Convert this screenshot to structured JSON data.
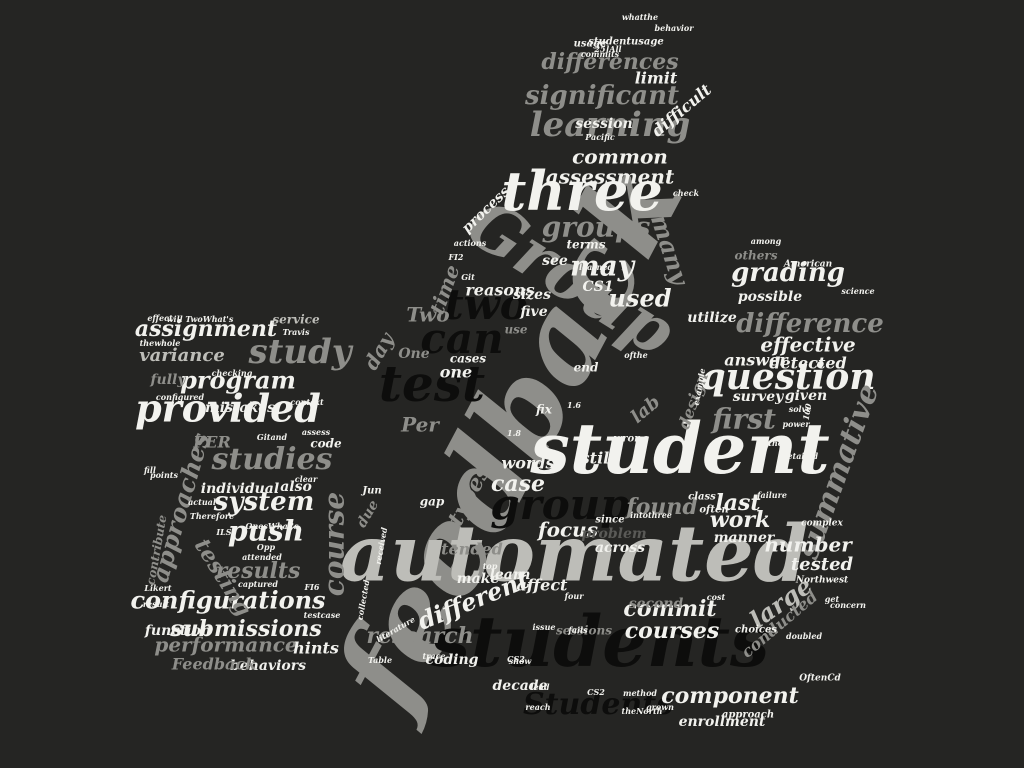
{
  "background": "#252523",
  "palette": {
    "white": "#f2f2ee",
    "light": "#bdbdb8",
    "mid": "#8e8e8a",
    "dark": "#5a5a57",
    "black": "#0d0d0c"
  },
  "shape": "thumbs-up",
  "words": [
    {
      "text": "feedback",
      "tone": "mid"
    },
    {
      "text": "automated",
      "tone": "light"
    },
    {
      "text": "student",
      "tone": "white"
    },
    {
      "text": "students",
      "tone": "black"
    },
    {
      "text": "Group",
      "tone": "mid"
    },
    {
      "text": "three",
      "tone": "white"
    },
    {
      "text": "test",
      "tone": "black"
    },
    {
      "text": "provided",
      "tone": "white"
    },
    {
      "text": "group",
      "tone": "black"
    },
    {
      "text": "question",
      "tone": "white"
    },
    {
      "text": "two",
      "tone": "black"
    },
    {
      "text": "can",
      "tone": "black"
    },
    {
      "text": "learning",
      "tone": "mid"
    },
    {
      "text": "summative",
      "tone": "mid"
    },
    {
      "text": "studies",
      "tone": "mid"
    },
    {
      "text": "study",
      "tone": "mid"
    },
    {
      "text": "system",
      "tone": "white"
    },
    {
      "text": "course",
      "tone": "mid"
    },
    {
      "text": "configurations",
      "tone": "white"
    },
    {
      "text": "Students",
      "tone": "black"
    },
    {
      "text": "significant",
      "tone": "mid"
    },
    {
      "text": "groups",
      "tone": "mid"
    },
    {
      "text": "push",
      "tone": "white"
    },
    {
      "text": "different",
      "tone": "white"
    },
    {
      "text": "grading",
      "tone": "white"
    },
    {
      "text": "difference",
      "tone": "mid"
    },
    {
      "text": "first",
      "tone": "mid"
    },
    {
      "text": "used",
      "tone": "white"
    },
    {
      "text": "may",
      "tone": "white"
    },
    {
      "text": "many",
      "tone": "mid"
    },
    {
      "text": "testing",
      "tone": "mid"
    },
    {
      "text": "approaches",
      "tone": "mid"
    },
    {
      "text": "program",
      "tone": "white"
    },
    {
      "text": "assignment",
      "tone": "white"
    },
    {
      "text": "variance",
      "tone": "light"
    },
    {
      "text": "differences",
      "tone": "mid"
    },
    {
      "text": "common",
      "tone": "white"
    },
    {
      "text": "assessment",
      "tone": "white"
    },
    {
      "text": "submissions",
      "tone": "white"
    },
    {
      "text": "performance",
      "tone": "mid"
    },
    {
      "text": "results",
      "tone": "mid"
    },
    {
      "text": "research",
      "tone": "mid"
    },
    {
      "text": "courses",
      "tone": "white"
    },
    {
      "text": "component",
      "tone": "white"
    },
    {
      "text": "commit",
      "tone": "white"
    },
    {
      "text": "large",
      "tone": "light"
    },
    {
      "text": "found",
      "tone": "mid"
    },
    {
      "text": "work",
      "tone": "white"
    },
    {
      "text": "last",
      "tone": "white"
    },
    {
      "text": "tested",
      "tone": "white"
    },
    {
      "text": "number",
      "tone": "white"
    },
    {
      "text": "effective",
      "tone": "white"
    },
    {
      "text": "detected",
      "tone": "white"
    },
    {
      "text": "answer",
      "tone": "white"
    },
    {
      "text": "focus",
      "tone": "white"
    },
    {
      "text": "case",
      "tone": "white"
    },
    {
      "text": "types",
      "tone": "mid"
    },
    {
      "text": "words",
      "tone": "white"
    },
    {
      "text": "lab",
      "tone": "mid"
    },
    {
      "text": "Per",
      "tone": "mid"
    },
    {
      "text": "time",
      "tone": "mid"
    },
    {
      "text": "day",
      "tone": "mid"
    },
    {
      "text": "Two",
      "tone": "mid"
    },
    {
      "text": "one",
      "tone": "white"
    },
    {
      "text": "five",
      "tone": "white"
    },
    {
      "text": "reasons",
      "tone": "white"
    },
    {
      "text": "sizes",
      "tone": "white"
    },
    {
      "text": "still",
      "tone": "white"
    },
    {
      "text": "design",
      "tone": "mid"
    },
    {
      "text": "survey",
      "tone": "white"
    },
    {
      "text": "given",
      "tone": "white"
    },
    {
      "text": "limit",
      "tone": "white"
    },
    {
      "text": "difficult",
      "tone": "white"
    },
    {
      "text": "session",
      "tone": "white"
    },
    {
      "text": "process",
      "tone": "white"
    },
    {
      "text": "hints",
      "tone": "white"
    },
    {
      "text": "behaviors",
      "tone": "white"
    },
    {
      "text": "Feedback",
      "tone": "mid"
    },
    {
      "text": "function",
      "tone": "white"
    },
    {
      "text": "individual",
      "tone": "white"
    },
    {
      "text": "also",
      "tone": "white"
    },
    {
      "text": "code",
      "tone": "white"
    },
    {
      "text": "service",
      "tone": "light"
    },
    {
      "text": "mistakes",
      "tone": "white"
    },
    {
      "text": "PER",
      "tone": "mid"
    },
    {
      "text": "fully",
      "tone": "mid"
    },
    {
      "text": "conducted",
      "tone": "mid"
    },
    {
      "text": "problem",
      "tone": "dark"
    },
    {
      "text": "across",
      "tone": "white"
    },
    {
      "text": "manner",
      "tone": "white"
    },
    {
      "text": "second",
      "tone": "mid"
    },
    {
      "text": "affect",
      "tone": "white"
    },
    {
      "text": "sessions",
      "tone": "mid"
    },
    {
      "text": "coding",
      "tone": "white"
    },
    {
      "text": "make",
      "tone": "white"
    },
    {
      "text": "learn",
      "tone": "white"
    },
    {
      "text": "decade",
      "tone": "white"
    },
    {
      "text": "enrollment",
      "tone": "white"
    },
    {
      "text": "tended",
      "tone": "mid"
    },
    {
      "text": "possible",
      "tone": "white"
    },
    {
      "text": "utilize",
      "tone": "white"
    },
    {
      "text": "others",
      "tone": "mid"
    },
    {
      "text": "CS1",
      "tone": "white"
    },
    {
      "text": "terms",
      "tone": "white"
    },
    {
      "text": "see",
      "tone": "white"
    },
    {
      "text": "end",
      "tone": "white"
    },
    {
      "text": "cases",
      "tone": "white"
    },
    {
      "text": "fix",
      "tone": "white"
    },
    {
      "text": "One",
      "tone": "mid"
    },
    {
      "text": "use",
      "tone": "mid"
    },
    {
      "text": "due",
      "tone": "mid"
    },
    {
      "text": "wrong",
      "tone": "white"
    },
    {
      "text": "since",
      "tone": "white"
    },
    {
      "text": "class",
      "tone": "white"
    },
    {
      "text": "often",
      "tone": "white"
    },
    {
      "text": "gap",
      "tone": "white"
    },
    {
      "text": "Jun",
      "tone": "white"
    },
    {
      "text": "top",
      "tone": "white"
    },
    {
      "text": "four",
      "tone": "white"
    },
    {
      "text": "cost",
      "tone": "white"
    },
    {
      "text": "failure",
      "tone": "white"
    },
    {
      "text": "choices",
      "tone": "white"
    },
    {
      "text": "approach",
      "tone": "white"
    },
    {
      "text": "method",
      "tone": "white"
    },
    {
      "text": "reach",
      "tone": "white"
    },
    {
      "text": "lead",
      "tone": "white"
    },
    {
      "text": "show",
      "tone": "white"
    },
    {
      "text": "trace",
      "tone": "white"
    },
    {
      "text": "Table",
      "tone": "white"
    },
    {
      "text": "Northwest",
      "tone": "white"
    },
    {
      "text": "American",
      "tone": "white"
    },
    {
      "text": "Pacific",
      "tone": "white"
    },
    {
      "text": "commits",
      "tone": "white"
    },
    {
      "text": "usage",
      "tone": "white"
    },
    {
      "text": "behavior",
      "tone": "white"
    },
    {
      "text": "learned",
      "tone": "white"
    },
    {
      "text": "actions",
      "tone": "white"
    },
    {
      "text": "among",
      "tone": "white"
    },
    {
      "text": "science",
      "tone": "white"
    },
    {
      "text": "complex",
      "tone": "white"
    },
    {
      "text": "detailed",
      "tone": "white"
    },
    {
      "text": "concern",
      "tone": "white"
    },
    {
      "text": "check",
      "tone": "white"
    },
    {
      "text": "Travis",
      "tone": "white"
    },
    {
      "text": "checking",
      "tone": "white"
    },
    {
      "text": "context",
      "tone": "white"
    },
    {
      "text": "configured",
      "tone": "white"
    },
    {
      "text": "assess",
      "tone": "white"
    },
    {
      "text": "clear",
      "tone": "white"
    },
    {
      "text": "points",
      "tone": "white"
    },
    {
      "text": "actual",
      "tone": "white"
    },
    {
      "text": "Therefore",
      "tone": "white"
    },
    {
      "text": "contribute",
      "tone": "mid"
    },
    {
      "text": "attended",
      "tone": "white"
    },
    {
      "text": "captured",
      "tone": "white"
    },
    {
      "text": "Likert",
      "tone": "white"
    },
    {
      "text": "result",
      "tone": "white"
    },
    {
      "text": "testcase",
      "tone": "white"
    },
    {
      "text": "received",
      "tone": "white"
    },
    {
      "text": "collected",
      "tone": "white"
    },
    {
      "text": "literature",
      "tone": "white"
    },
    {
      "text": "effect",
      "tone": "white"
    },
    {
      "text": "power",
      "tone": "white"
    },
    {
      "text": "fill",
      "tone": "white"
    },
    {
      "text": "get",
      "tone": "white"
    },
    {
      "text": "Git",
      "tone": "white"
    },
    {
      "text": "CS2",
      "tone": "white"
    },
    {
      "text": "OnesWhat's",
      "tone": "white"
    },
    {
      "text": "FI6",
      "tone": "white"
    },
    {
      "text": "FI2",
      "tone": "white"
    },
    {
      "text": "studentusage",
      "tone": "white"
    },
    {
      "text": "whatthe",
      "tone": "white"
    },
    {
      "text": "thewhole",
      "tone": "white"
    },
    {
      "text": "intothree",
      "tone": "white"
    },
    {
      "text": "theNorth",
      "tone": "white"
    },
    {
      "text": "will TwoWhat's",
      "tone": "white"
    },
    {
      "text": "25]All",
      "tone": "white"
    },
    {
      "text": "OftenCd",
      "tone": "white"
    },
    {
      "text": "ofthe",
      "tone": "white"
    },
    {
      "text": "onthe",
      "tone": "white"
    },
    {
      "text": "solve",
      "tone": "white"
    },
    {
      "text": "doubled",
      "tone": "white"
    },
    {
      "text": "grown",
      "tone": "white"
    },
    {
      "text": "issue",
      "tone": "white"
    },
    {
      "text": "fails",
      "tone": "white"
    },
    {
      "text": "example",
      "tone": "white"
    },
    {
      "text": "Gitand",
      "tone": "white"
    },
    {
      "text": "Opp",
      "tone": "white"
    },
    {
      "text": "ILS",
      "tone": "white"
    },
    {
      "text": "1.8",
      "tone": "white"
    },
    {
      "text": "1.6",
      "tone": "white"
    },
    {
      "text": "100",
      "tone": "white"
    },
    {
      "text": "CS2",
      "tone": "white"
    }
  ]
}
